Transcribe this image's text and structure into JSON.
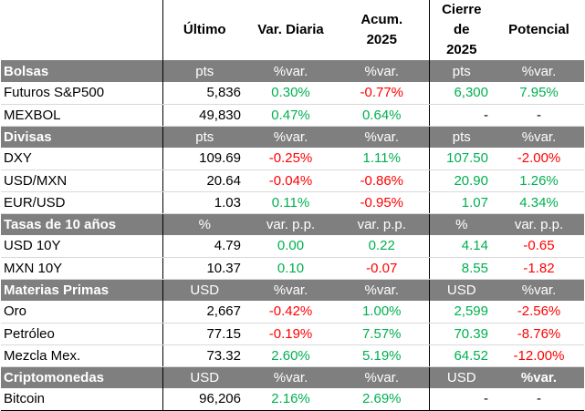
{
  "headers": [
    "",
    "Último",
    "Var. Diaria",
    "Acum.\n2025",
    "Cierre de\n2025",
    "Potencial"
  ],
  "header_lines": {
    "ultimo": "Último",
    "var_diaria": "Var. Diaria",
    "acum_1": "Acum.",
    "acum_2": "2025",
    "cierre_1": "Cierre de",
    "cierre_2": "2025",
    "potencial": "Potencial"
  },
  "colors": {
    "positive": "#00b050",
    "negative": "#ff0000",
    "section_bg": "#7f7f7f"
  },
  "sections": [
    {
      "title": "Bolsas",
      "units": [
        "pts",
        "%var.",
        "%var.",
        "pts",
        "%var."
      ],
      "rows": [
        {
          "name": "Futuros S&P500",
          "ultimo": "5,836",
          "diaria": "0.30%",
          "acum": "-0.77%",
          "cierre": "6,300",
          "potencial": "7.95%"
        },
        {
          "name": "MEXBOL",
          "ultimo": "49,830",
          "diaria": "0.47%",
          "acum": "0.64%",
          "cierre": "-",
          "potencial": "-"
        }
      ]
    },
    {
      "title": "Divisas",
      "units": [
        "pts",
        "%var.",
        "%var.",
        "pts",
        "%var."
      ],
      "rows": [
        {
          "name": "DXY",
          "ultimo": "109.69",
          "diaria": "-0.25%",
          "acum": "1.11%",
          "cierre": "107.50",
          "potencial": "-2.00%"
        },
        {
          "name": "USD/MXN",
          "ultimo": "20.64",
          "diaria": "-0.04%",
          "acum": "-0.86%",
          "cierre": "20.90",
          "potencial": "1.26%"
        },
        {
          "name": "EUR/USD",
          "ultimo": "1.03",
          "diaria": "0.11%",
          "acum": "-0.95%",
          "cierre": "1.07",
          "potencial": "4.34%"
        }
      ]
    },
    {
      "title": "Tasas de 10 años",
      "units": [
        "%",
        "var. p.p.",
        "var. p.p.",
        "%",
        "var. p.p."
      ],
      "rows": [
        {
          "name": "USD 10Y",
          "ultimo": "4.79",
          "diaria": "0.00",
          "acum": "0.22",
          "cierre": "4.14",
          "potencial": "-0.65"
        },
        {
          "name": "MXN 10Y",
          "ultimo": "10.37",
          "diaria": "0.10",
          "acum": "-0.07",
          "cierre": "8.55",
          "potencial": "-1.82"
        }
      ]
    },
    {
      "title": "Materias Primas",
      "units": [
        "USD",
        "%var.",
        "%var.",
        "USD",
        "%var."
      ],
      "rows": [
        {
          "name": "Oro",
          "ultimo": "2,667",
          "diaria": "-0.42%",
          "acum": "1.00%",
          "cierre": "2,599",
          "potencial": "-2.56%"
        },
        {
          "name": "Petróleo",
          "ultimo": "77.15",
          "diaria": "-0.19%",
          "acum": "7.57%",
          "cierre": "70.39",
          "potencial": "-8.76%"
        },
        {
          "name": "Mezcla Mex.",
          "ultimo": "73.32",
          "diaria": "2.60%",
          "acum": "5.19%",
          "cierre": "64.52",
          "potencial": "-12.00%"
        }
      ]
    },
    {
      "title": "Criptomonedas",
      "units": [
        "USD",
        "%var.",
        "%var.",
        "USD",
        "%var."
      ],
      "rows": [
        {
          "name": "Bitcoin",
          "ultimo": "96,206",
          "diaria": "2.16%",
          "acum": "2.69%",
          "cierre": "-",
          "potencial": "-"
        }
      ]
    }
  ]
}
